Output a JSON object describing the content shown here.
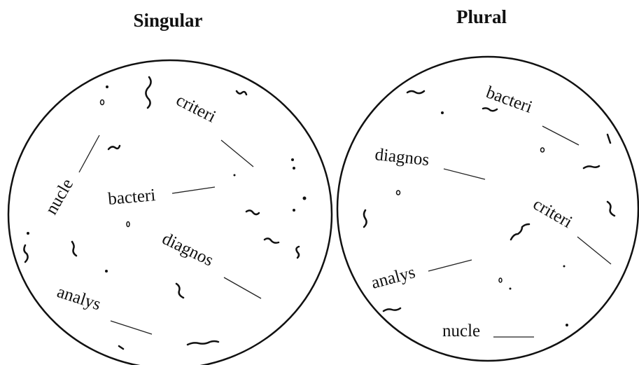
{
  "panels": [
    {
      "title": "Singular",
      "words": [
        "criteri",
        "nucle",
        "bacteri",
        "diagnos",
        "analys"
      ]
    },
    {
      "title": "Plural",
      "words": [
        "bacteri",
        "diagnos",
        "criteri",
        "analys",
        "nucle"
      ]
    }
  ]
}
